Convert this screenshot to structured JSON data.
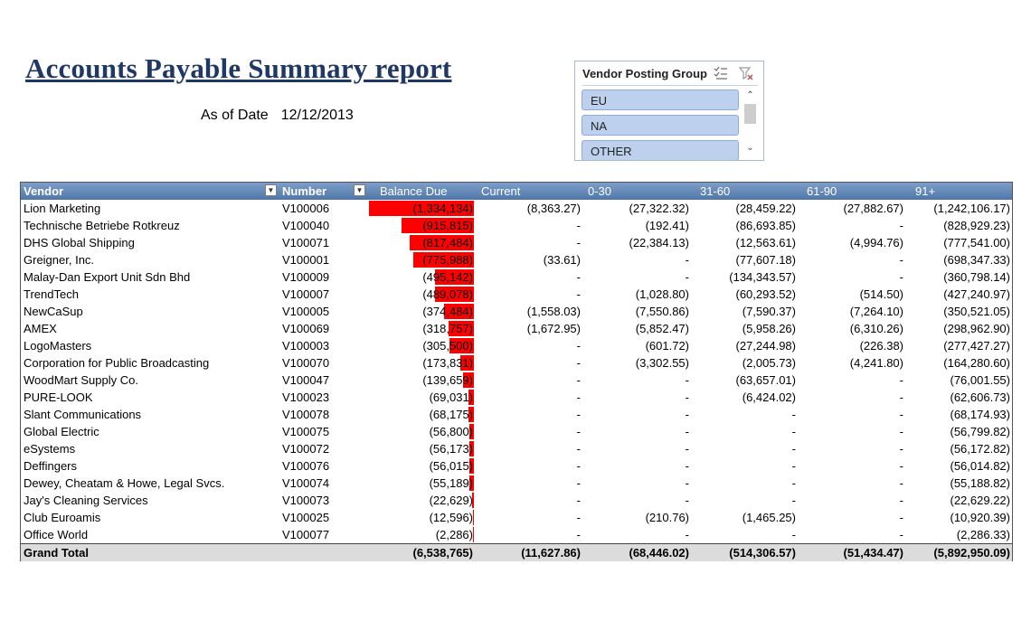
{
  "report": {
    "title": "Accounts Payable Summary report",
    "as_of_label": "As of Date",
    "as_of_value": "12/12/2013"
  },
  "slicer": {
    "title": "Vendor Posting Group",
    "items": [
      "EU",
      "NA",
      "OTHER"
    ],
    "icons": [
      "multi-select-icon",
      "clear-filter-icon"
    ]
  },
  "table": {
    "headers": {
      "vendor": "Vendor",
      "number": "Number",
      "balance_due": "Balance Due",
      "current": "Current",
      "d0_30": "0-30",
      "d31_60": "31-60",
      "d61_90": "61-90",
      "d91": "91+"
    },
    "max_balance": 1334134,
    "rows": [
      {
        "vendor": "Lion Marketing",
        "number": "V100006",
        "balance": "(1,334,134)",
        "balance_value": 1334134,
        "current": "(8,363.27)",
        "d0_30": "(27,322.32)",
        "d31_60": "(28,459.22)",
        "d61_90": "(27,882.67)",
        "d91": "(1,242,106.17)"
      },
      {
        "vendor": "Technische Betriebe Rotkreuz",
        "number": "V100040",
        "balance": "(915,815)",
        "balance_value": 915815,
        "current": "-",
        "d0_30": "(192.41)",
        "d31_60": "(86,693.85)",
        "d61_90": "-",
        "d91": "(828,929.23)"
      },
      {
        "vendor": "DHS Global Shipping",
        "number": "V100071",
        "balance": "(817,484)",
        "balance_value": 817484,
        "current": "-",
        "d0_30": "(22,384.13)",
        "d31_60": "(12,563.61)",
        "d61_90": "(4,994.76)",
        "d91": "(777,541.00)"
      },
      {
        "vendor": "Greigner, Inc.",
        "number": "V100001",
        "balance": "(775,988)",
        "balance_value": 775988,
        "current": "(33.61)",
        "d0_30": "-",
        "d31_60": "(77,607.18)",
        "d61_90": "-",
        "d91": "(698,347.33)"
      },
      {
        "vendor": "Malay-Dan Export Unit Sdn Bhd",
        "number": "V100009",
        "balance": "(495,142)",
        "balance_value": 495142,
        "current": "-",
        "d0_30": "-",
        "d31_60": "(134,343.57)",
        "d61_90": "-",
        "d91": "(360,798.14)"
      },
      {
        "vendor": "TrendTech",
        "number": "V100007",
        "balance": "(489,078)",
        "balance_value": 489078,
        "current": "-",
        "d0_30": "(1,028.80)",
        "d31_60": "(60,293.52)",
        "d61_90": "(514.50)",
        "d91": "(427,240.97)"
      },
      {
        "vendor": "NewCaSup",
        "number": "V100005",
        "balance": "(374,484)",
        "balance_value": 374484,
        "current": "(1,558.03)",
        "d0_30": "(7,550.86)",
        "d31_60": "(7,590.37)",
        "d61_90": "(7,264.10)",
        "d91": "(350,521.05)"
      },
      {
        "vendor": "AMEX",
        "number": "V100069",
        "balance": "(318,757)",
        "balance_value": 318757,
        "current": "(1,672.95)",
        "d0_30": "(5,852.47)",
        "d31_60": "(5,958.26)",
        "d61_90": "(6,310.26)",
        "d91": "(298,962.90)"
      },
      {
        "vendor": "LogoMasters",
        "number": "V100003",
        "balance": "(305,500)",
        "balance_value": 305500,
        "current": "-",
        "d0_30": "(601.72)",
        "d31_60": "(27,244.98)",
        "d61_90": "(226.38)",
        "d91": "(277,427.27)"
      },
      {
        "vendor": "Corporation for Public Broadcasting",
        "number": "V100070",
        "balance": "(173,831)",
        "balance_value": 173831,
        "current": "-",
        "d0_30": "(3,302.55)",
        "d31_60": "(2,005.73)",
        "d61_90": "(4,241.80)",
        "d91": "(164,280.60)"
      },
      {
        "vendor": "WoodMart Supply Co.",
        "number": "V100047",
        "balance": "(139,659)",
        "balance_value": 139659,
        "current": "-",
        "d0_30": "-",
        "d31_60": "(63,657.01)",
        "d61_90": "-",
        "d91": "(76,001.55)"
      },
      {
        "vendor": "PURE-LOOK",
        "number": "V100023",
        "balance": "(69,031)",
        "balance_value": 69031,
        "current": "-",
        "d0_30": "-",
        "d31_60": "(6,424.02)",
        "d61_90": "-",
        "d91": "(62,606.73)"
      },
      {
        "vendor": "Slant Communications",
        "number": "V100078",
        "balance": "(68,175)",
        "balance_value": 68175,
        "current": "-",
        "d0_30": "-",
        "d31_60": "-",
        "d61_90": "-",
        "d91": "(68,174.93)"
      },
      {
        "vendor": "Global Electric",
        "number": "V100075",
        "balance": "(56,800)",
        "balance_value": 56800,
        "current": "-",
        "d0_30": "-",
        "d31_60": "-",
        "d61_90": "-",
        "d91": "(56,799.82)"
      },
      {
        "vendor": "eSystems",
        "number": "V100072",
        "balance": "(56,173)",
        "balance_value": 56173,
        "current": "-",
        "d0_30": "-",
        "d31_60": "-",
        "d61_90": "-",
        "d91": "(56,172.82)"
      },
      {
        "vendor": "Deffingers",
        "number": "V100076",
        "balance": "(56,015)",
        "balance_value": 56015,
        "current": "-",
        "d0_30": "-",
        "d31_60": "-",
        "d61_90": "-",
        "d91": "(56,014.82)"
      },
      {
        "vendor": "Dewey, Cheatam & Howe, Legal Svcs.",
        "number": "V100074",
        "balance": "(55,189)",
        "balance_value": 55189,
        "current": "-",
        "d0_30": "-",
        "d31_60": "-",
        "d61_90": "-",
        "d91": "(55,188.82)"
      },
      {
        "vendor": "Jay's Cleaning Services",
        "number": "V100073",
        "balance": "(22,629)",
        "balance_value": 22629,
        "current": "-",
        "d0_30": "-",
        "d31_60": "-",
        "d61_90": "-",
        "d91": "(22,629.22)"
      },
      {
        "vendor": "Club Euroamis",
        "number": "V100025",
        "balance": "(12,596)",
        "balance_value": 12596,
        "current": "-",
        "d0_30": "(210.76)",
        "d31_60": "(1,465.25)",
        "d61_90": "-",
        "d91": "(10,920.39)"
      },
      {
        "vendor": "Office World",
        "number": "V100077",
        "balance": "(2,286)",
        "balance_value": 2286,
        "current": "-",
        "d0_30": "-",
        "d31_60": "-",
        "d61_90": "-",
        "d91": "(2,286.33)"
      }
    ],
    "total": {
      "label": "Grand Total",
      "balance": "(6,538,765)",
      "current": "(11,627.86)",
      "d0_30": "(68,446.02)",
      "d31_60": "(514,306.57)",
      "d61_90": "(51,434.47)",
      "d91": "(5,892,950.09)"
    }
  },
  "colors": {
    "title": "#1f3864",
    "databar": "#ff0000",
    "header_bg": "#4e76aa",
    "slicer_item": "#bdd0ee"
  }
}
